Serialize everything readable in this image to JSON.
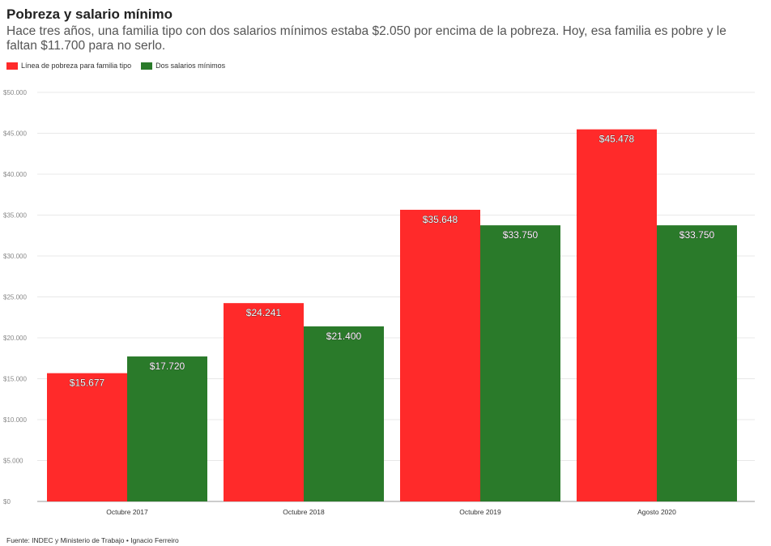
{
  "title": "Pobreza y salario mínimo",
  "subtitle": "Hace tres años, una familia tipo con dos salarios mínimos estaba $2.050 por encima de la pobreza. Hoy, esa familia es pobre y le faltan $11.700 para no serlo.",
  "source": "Fuente: INDEC y Ministerio de Trabajo • Ignacio Ferreiro",
  "colors": {
    "poverty": "#ff2a2a",
    "wages": "#2a7a2a",
    "grid": "#e8e8e8",
    "axis": "#888888"
  },
  "chart_data": {
    "type": "bar",
    "categories": [
      "Octubre 2017",
      "Octubre 2018",
      "Octubre 2019",
      "Agosto 2020"
    ],
    "series": [
      {
        "name": "Línea de pobreza para familia tipo",
        "values": [
          15677,
          24241,
          35648,
          45478
        ],
        "labels": [
          "$15.677",
          "$24.241",
          "$35.648",
          "$45.478"
        ]
      },
      {
        "name": "Dos salarios mínimos",
        "values": [
          17720,
          21400,
          33750,
          33750
        ],
        "labels": [
          "$17.720",
          "$21.400",
          "$33.750",
          "$33.750"
        ]
      }
    ],
    "ylim": [
      0,
      50000
    ],
    "yticks": [
      0,
      5000,
      10000,
      15000,
      20000,
      25000,
      30000,
      35000,
      40000,
      45000,
      50000
    ],
    "ytick_labels": [
      "$0",
      "$5.000",
      "$10.000",
      "$15.000",
      "$20.000",
      "$25.000",
      "$30.000",
      "$35.000",
      "$40.000",
      "$45.000",
      "$50.000"
    ],
    "grid": true,
    "legend_position": "top-left"
  }
}
